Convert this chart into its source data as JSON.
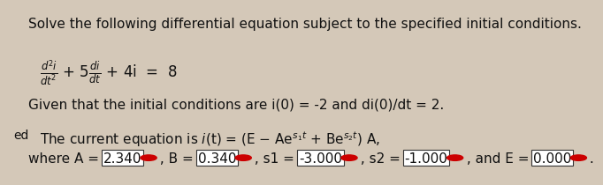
{
  "bg_color": "#d4c8b8",
  "line1": "Solve the following differential equation subject to the specified initial conditions.",
  "line3": "Given that the initial conditions are i(0) = -2 and di(0)/dt = 2.",
  "line4": "The current equation is i(t) = (E − Ae$^{s_1t}$ + Be$^{s_2t}$) A,",
  "line5_prefix": "where A = ",
  "values": [
    "2.340",
    "0.340",
    "-3.000",
    "-1.000",
    "0.000"
  ],
  "separators": [
    " , B = ",
    " , s1 = ",
    " , s2 = ",
    " , and E = ",
    " ."
  ],
  "font_size_main": 11,
  "box_color": "white",
  "box_edge": "#333333",
  "circle_color": "#cc0000",
  "text_color": "#111111",
  "side_label": "ed"
}
